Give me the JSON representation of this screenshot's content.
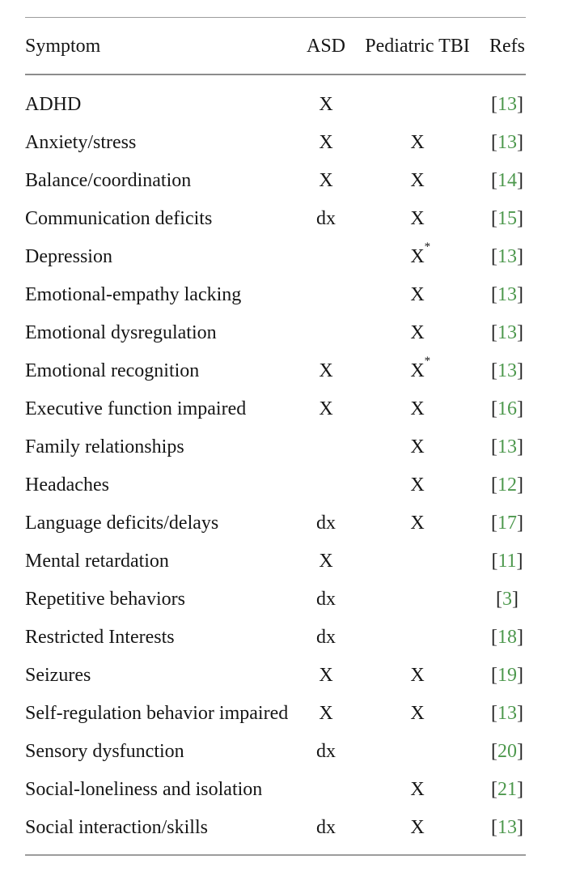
{
  "table": {
    "header": {
      "symptom": "Symptom",
      "asd": "ASD",
      "tbi": "Pediatric TBI",
      "refs": "Refs"
    },
    "ref_bracket_open": "[",
    "ref_bracket_close": "]",
    "rows": [
      {
        "symptom": "ADHD",
        "asd": "X",
        "tbi": "",
        "tbi_sup": "",
        "ref": "13"
      },
      {
        "symptom": "Anxiety/stress",
        "asd": "X",
        "tbi": "X",
        "tbi_sup": "",
        "ref": "13"
      },
      {
        "symptom": "Balance/coordination",
        "asd": "X",
        "tbi": "X",
        "tbi_sup": "",
        "ref": "14"
      },
      {
        "symptom": "Communication deficits",
        "asd": "dx",
        "tbi": "X",
        "tbi_sup": "",
        "ref": "15"
      },
      {
        "symptom": "Depression",
        "asd": "",
        "tbi": "X",
        "tbi_sup": "*",
        "ref": "13"
      },
      {
        "symptom": "Emotional-empathy lacking",
        "asd": "",
        "tbi": "X",
        "tbi_sup": "",
        "ref": "13"
      },
      {
        "symptom": "Emotional dysregulation",
        "asd": "",
        "tbi": "X",
        "tbi_sup": "",
        "ref": "13"
      },
      {
        "symptom": "Emotional recognition",
        "asd": "X",
        "tbi": "X",
        "tbi_sup": "*",
        "ref": "13"
      },
      {
        "symptom": "Executive function impaired",
        "asd": "X",
        "tbi": "X",
        "tbi_sup": "",
        "ref": "16"
      },
      {
        "symptom": "Family relationships",
        "asd": "",
        "tbi": "X",
        "tbi_sup": "",
        "ref": "13"
      },
      {
        "symptom": "Headaches",
        "asd": "",
        "tbi": "X",
        "tbi_sup": "",
        "ref": "12"
      },
      {
        "symptom": "Language deficits/delays",
        "asd": "dx",
        "tbi": "X",
        "tbi_sup": "",
        "ref": "17"
      },
      {
        "symptom": "Mental retardation",
        "asd": "X",
        "tbi": "",
        "tbi_sup": "",
        "ref": "11"
      },
      {
        "symptom": "Repetitive behaviors",
        "asd": "dx",
        "tbi": "",
        "tbi_sup": "",
        "ref": "3"
      },
      {
        "symptom": "Restricted Interests",
        "asd": "dx",
        "tbi": "",
        "tbi_sup": "",
        "ref": "18"
      },
      {
        "symptom": "Seizures",
        "asd": "X",
        "tbi": "X",
        "tbi_sup": "",
        "ref": "19"
      },
      {
        "symptom": "Self-regulation behavior impaired",
        "asd": "X",
        "tbi": "X",
        "tbi_sup": "",
        "ref": "13"
      },
      {
        "symptom": "Sensory dysfunction",
        "asd": "dx",
        "tbi": "",
        "tbi_sup": "",
        "ref": "20"
      },
      {
        "symptom": "Social-loneliness and isolation",
        "asd": "",
        "tbi": "X",
        "tbi_sup": "",
        "ref": "21"
      },
      {
        "symptom": "Social interaction/skills",
        "asd": "dx",
        "tbi": "X",
        "tbi_sup": "",
        "ref": "13"
      }
    ]
  },
  "colors": {
    "text": "#161616",
    "ref_number_green": "#4d984d",
    "rule_gray": "#9c9c9c"
  }
}
